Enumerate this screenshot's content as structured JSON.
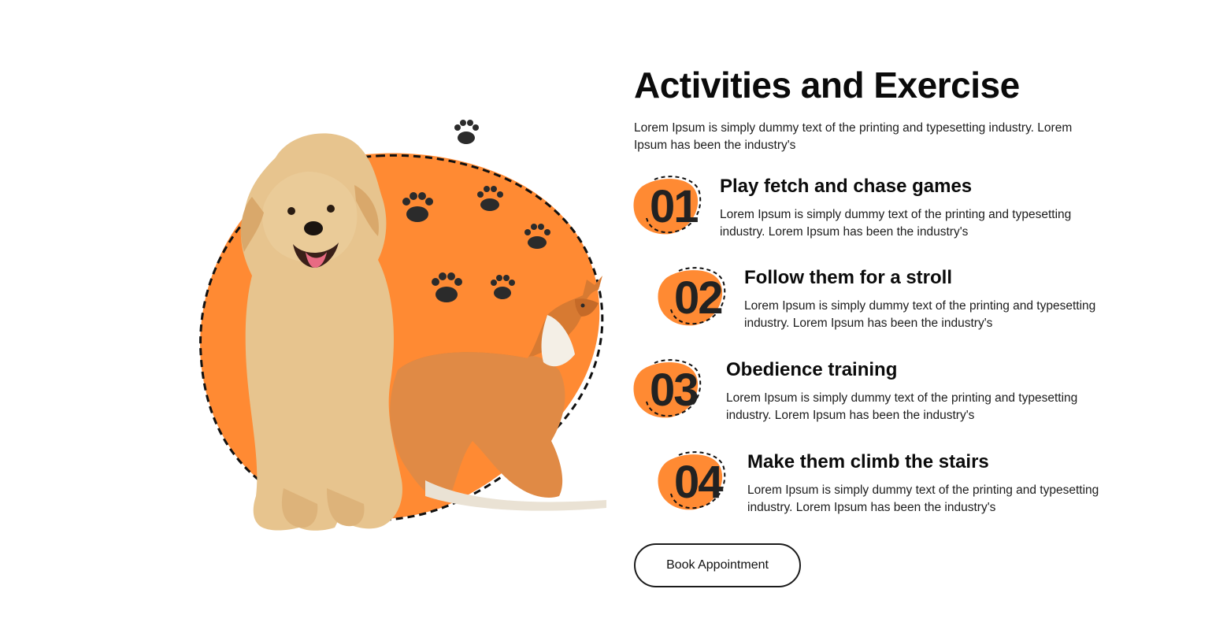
{
  "section": {
    "headline": "Activities and Exercise",
    "intro": "Lorem Ipsum is simply dummy text of the printing and typesetting industry. Lorem Ipsum has been the industry's"
  },
  "steps": [
    {
      "number": "01",
      "title": "Play fetch and chase games",
      "description": "Lorem Ipsum is simply dummy text of the printing and typesetting industry. Lorem Ipsum has been the industry's"
    },
    {
      "number": "02",
      "title": "Follow them for a stroll",
      "description": "Lorem Ipsum is simply dummy text of the printing and typesetting industry. Lorem Ipsum has been the industry's"
    },
    {
      "number": "03",
      "title": "Obedience training",
      "description": "Lorem Ipsum is simply dummy text of the printing and typesetting industry. Lorem Ipsum has been the industry's"
    },
    {
      "number": "04",
      "title": "Make them climb the stairs",
      "description": "Lorem Ipsum is simply dummy text of the printing and typesetting industry. Lorem Ipsum has been the industry's"
    }
  ],
  "cta": {
    "label": "Book Appointment"
  },
  "colors": {
    "accent": "#FF8A33",
    "text": "#0b0b0b",
    "paw": "#2b2b2b"
  },
  "icons": {
    "paw": "paw-icon",
    "illustration": "dog-and-cat-illustration"
  }
}
